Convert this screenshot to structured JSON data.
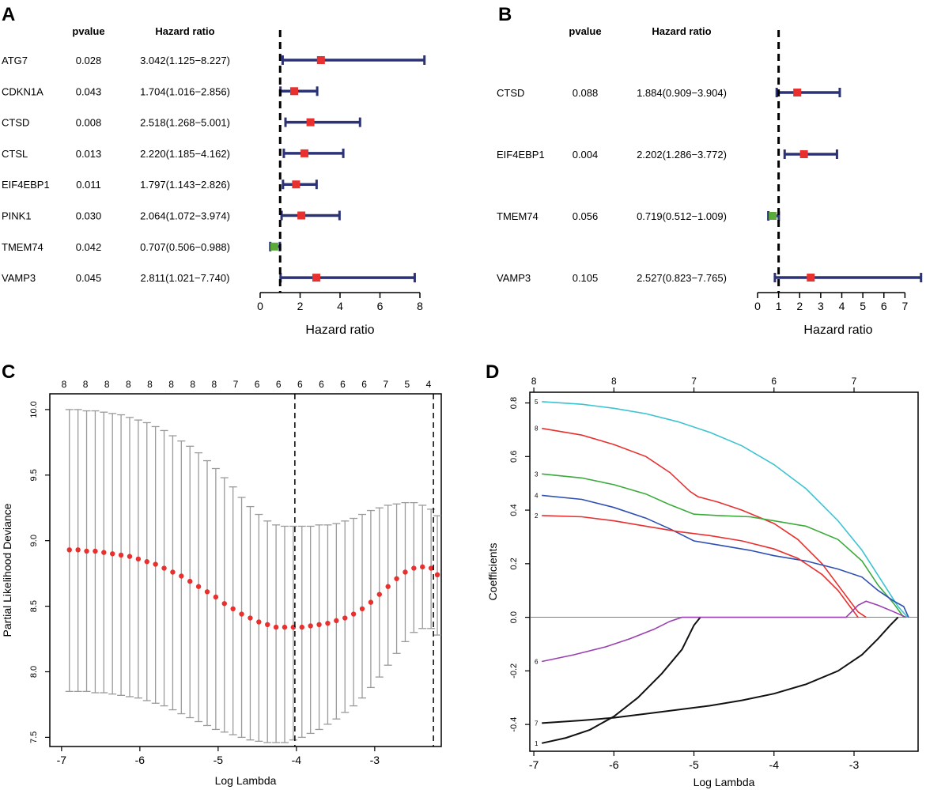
{
  "chart_data": [
    {
      "panel": "A",
      "type": "forest",
      "headers": {
        "pvalue": "pvalue",
        "hr": "Hazard ratio"
      },
      "rows": [
        {
          "gene": "ATG7",
          "pvalue": "0.028",
          "hr_text": "3.042(1.125−8.227)",
          "hr": 3.042,
          "lo": 1.125,
          "hi": 8.227,
          "color": "#e8302f"
        },
        {
          "gene": "CDKN1A",
          "pvalue": "0.043",
          "hr_text": "1.704(1.016−2.856)",
          "hr": 1.704,
          "lo": 1.016,
          "hi": 2.856,
          "color": "#e8302f"
        },
        {
          "gene": "CTSD",
          "pvalue": "0.008",
          "hr_text": "2.518(1.268−5.001)",
          "hr": 2.518,
          "lo": 1.268,
          "hi": 5.001,
          "color": "#e8302f"
        },
        {
          "gene": "CTSL",
          "pvalue": "0.013",
          "hr_text": "2.220(1.185−4.162)",
          "hr": 2.22,
          "lo": 1.185,
          "hi": 4.162,
          "color": "#e8302f"
        },
        {
          "gene": "EIF4EBP1",
          "pvalue": "0.011",
          "hr_text": "1.797(1.143−2.826)",
          "hr": 1.797,
          "lo": 1.143,
          "hi": 2.826,
          "color": "#e8302f"
        },
        {
          "gene": "PINK1",
          "pvalue": "0.030",
          "hr_text": "2.064(1.072−3.974)",
          "hr": 2.064,
          "lo": 1.072,
          "hi": 3.974,
          "color": "#e8302f"
        },
        {
          "gene": "TMEM74",
          "pvalue": "0.042",
          "hr_text": "0.707(0.506−0.988)",
          "hr": 0.707,
          "lo": 0.506,
          "hi": 0.988,
          "color": "#5aaa3a"
        },
        {
          "gene": "VAMP3",
          "pvalue": "0.045",
          "hr_text": "2.811(1.021−7.740)",
          "hr": 2.811,
          "lo": 1.021,
          "hi": 7.74,
          "color": "#e8302f"
        }
      ],
      "xlim": [
        0,
        8
      ],
      "xticks": [
        "0",
        "2",
        "4",
        "6",
        "8"
      ],
      "xlabel": "Hazard ratio",
      "reference_line": 1
    },
    {
      "panel": "B",
      "type": "forest",
      "headers": {
        "pvalue": "pvalue",
        "hr": "Hazard ratio"
      },
      "rows": [
        {
          "gene": "CTSD",
          "pvalue": "0.088",
          "hr_text": "1.884(0.909−3.904)",
          "hr": 1.884,
          "lo": 0.909,
          "hi": 3.904,
          "color": "#e8302f"
        },
        {
          "gene": "EIF4EBP1",
          "pvalue": "0.004",
          "hr_text": "2.202(1.286−3.772)",
          "hr": 2.202,
          "lo": 1.286,
          "hi": 3.772,
          "color": "#e8302f"
        },
        {
          "gene": "TMEM74",
          "pvalue": "0.056",
          "hr_text": "0.719(0.512−1.009)",
          "hr": 0.719,
          "lo": 0.512,
          "hi": 1.009,
          "color": "#5aaa3a"
        },
        {
          "gene": "VAMP3",
          "pvalue": "0.105",
          "hr_text": "2.527(0.823−7.765)",
          "hr": 2.527,
          "lo": 0.823,
          "hi": 7.765,
          "color": "#e8302f"
        }
      ],
      "xlim": [
        0,
        7.7
      ],
      "xticks": [
        "0",
        "1",
        "2",
        "3",
        "4",
        "5",
        "6",
        "7"
      ],
      "xlabel": "Hazard ratio",
      "reference_line": 1
    },
    {
      "panel": "C",
      "type": "scatter",
      "xlabel": "Log Lambda",
      "ylabel": "Partial Likelihood Deviance",
      "xlim": [
        -7.15,
        -2.15
      ],
      "ylim": [
        7.43,
        10.12
      ],
      "xticks": [
        "-7",
        "-6",
        "-5",
        "-4",
        "-3"
      ],
      "yticks": [
        "7.5",
        "8.0",
        "8.5",
        "9.0",
        "9.5",
        "10.0"
      ],
      "top_ticks": [
        "8",
        "8",
        "8",
        "8",
        "8",
        "8",
        "8",
        "8",
        "7",
        "6",
        "6",
        "6",
        "6",
        "6",
        "6",
        "7",
        "5",
        "4"
      ],
      "lambda_min": -4.02,
      "lambda_1se": -2.25,
      "points": [
        {
          "x": -6.9,
          "y": 8.93,
          "lo": 7.85,
          "hi": 10.0
        },
        {
          "x": -6.79,
          "y": 8.93,
          "lo": 7.85,
          "hi": 10.0
        },
        {
          "x": -6.68,
          "y": 8.92,
          "lo": 7.85,
          "hi": 9.99
        },
        {
          "x": -6.57,
          "y": 8.92,
          "lo": 7.84,
          "hi": 9.99
        },
        {
          "x": -6.46,
          "y": 8.91,
          "lo": 7.84,
          "hi": 9.98
        },
        {
          "x": -6.35,
          "y": 8.9,
          "lo": 7.83,
          "hi": 9.97
        },
        {
          "x": -6.24,
          "y": 8.89,
          "lo": 7.82,
          "hi": 9.96
        },
        {
          "x": -6.13,
          "y": 8.88,
          "lo": 7.81,
          "hi": 9.94
        },
        {
          "x": -6.02,
          "y": 8.86,
          "lo": 7.8,
          "hi": 9.92
        },
        {
          "x": -5.91,
          "y": 8.84,
          "lo": 7.78,
          "hi": 9.9
        },
        {
          "x": -5.8,
          "y": 8.82,
          "lo": 7.76,
          "hi": 9.87
        },
        {
          "x": -5.69,
          "y": 8.79,
          "lo": 7.74,
          "hi": 9.84
        },
        {
          "x": -5.58,
          "y": 8.76,
          "lo": 7.71,
          "hi": 9.8
        },
        {
          "x": -5.47,
          "y": 8.73,
          "lo": 7.68,
          "hi": 9.76
        },
        {
          "x": -5.36,
          "y": 8.69,
          "lo": 7.65,
          "hi": 9.72
        },
        {
          "x": -5.25,
          "y": 8.65,
          "lo": 7.62,
          "hi": 9.67
        },
        {
          "x": -5.14,
          "y": 8.61,
          "lo": 7.59,
          "hi": 9.61
        },
        {
          "x": -5.03,
          "y": 8.57,
          "lo": 7.56,
          "hi": 9.55
        },
        {
          "x": -4.92,
          "y": 8.52,
          "lo": 7.54,
          "hi": 9.48
        },
        {
          "x": -4.81,
          "y": 8.48,
          "lo": 7.52,
          "hi": 9.41
        },
        {
          "x": -4.7,
          "y": 8.44,
          "lo": 7.5,
          "hi": 9.33
        },
        {
          "x": -4.59,
          "y": 8.41,
          "lo": 7.48,
          "hi": 9.26
        },
        {
          "x": -4.48,
          "y": 8.38,
          "lo": 7.47,
          "hi": 9.2
        },
        {
          "x": -4.37,
          "y": 8.36,
          "lo": 7.46,
          "hi": 9.15
        },
        {
          "x": -4.26,
          "y": 8.34,
          "lo": 7.46,
          "hi": 9.12
        },
        {
          "x": -4.15,
          "y": 8.34,
          "lo": 7.46,
          "hi": 9.11
        },
        {
          "x": -4.04,
          "y": 8.34,
          "lo": 7.48,
          "hi": 9.11
        },
        {
          "x": -3.93,
          "y": 8.34,
          "lo": 7.5,
          "hi": 9.11
        },
        {
          "x": -3.82,
          "y": 8.35,
          "lo": 7.53,
          "hi": 9.11
        },
        {
          "x": -3.71,
          "y": 8.36,
          "lo": 7.56,
          "hi": 9.12
        },
        {
          "x": -3.6,
          "y": 8.37,
          "lo": 7.6,
          "hi": 9.12
        },
        {
          "x": -3.49,
          "y": 8.39,
          "lo": 7.64,
          "hi": 9.13
        },
        {
          "x": -3.38,
          "y": 8.41,
          "lo": 7.69,
          "hi": 9.15
        },
        {
          "x": -3.27,
          "y": 8.44,
          "lo": 7.74,
          "hi": 9.17
        },
        {
          "x": -3.16,
          "y": 8.48,
          "lo": 7.8,
          "hi": 9.2
        },
        {
          "x": -3.05,
          "y": 8.53,
          "lo": 7.88,
          "hi": 9.23
        },
        {
          "x": -2.94,
          "y": 8.59,
          "lo": 7.96,
          "hi": 9.25
        },
        {
          "x": -2.83,
          "y": 8.65,
          "lo": 8.05,
          "hi": 9.27
        },
        {
          "x": -2.72,
          "y": 8.71,
          "lo": 8.14,
          "hi": 9.28
        },
        {
          "x": -2.61,
          "y": 8.76,
          "lo": 8.23,
          "hi": 9.29
        },
        {
          "x": -2.5,
          "y": 8.79,
          "lo": 8.3,
          "hi": 9.29
        },
        {
          "x": -2.39,
          "y": 8.8,
          "lo": 8.33,
          "hi": 9.27
        },
        {
          "x": -2.28,
          "y": 8.79,
          "lo": 8.33,
          "hi": 9.24
        },
        {
          "x": -2.2,
          "y": 8.74,
          "lo": 8.28,
          "hi": 9.19
        }
      ]
    },
    {
      "panel": "D",
      "type": "line",
      "xlabel": "Log Lambda",
      "ylabel": "Coefficients",
      "xlim": [
        -7.05,
        -2.2
      ],
      "ylim": [
        -0.5,
        0.84
      ],
      "xticks": [
        "-7",
        "-6",
        "-5",
        "-4",
        "-3"
      ],
      "yticks": [
        "-0.4",
        "-0.2",
        "0.0",
        "0.2",
        "0.4",
        "0.6",
        "0.8"
      ],
      "top_ticks": [
        "8",
        "8",
        "7",
        "6",
        "7"
      ],
      "series": [
        {
          "name": "5",
          "color": "#3cc3d0",
          "points": [
            [
              -6.9,
              0.805
            ],
            [
              -6.4,
              0.795
            ],
            [
              -6.0,
              0.78
            ],
            [
              -5.6,
              0.76
            ],
            [
              -5.2,
              0.73
            ],
            [
              -4.8,
              0.69
            ],
            [
              -4.4,
              0.64
            ],
            [
              -4.0,
              0.57
            ],
            [
              -3.6,
              0.48
            ],
            [
              -3.2,
              0.36
            ],
            [
              -2.9,
              0.25
            ],
            [
              -2.6,
              0.11
            ],
            [
              -2.45,
              0.04
            ],
            [
              -2.33,
              0.0
            ]
          ]
        },
        {
          "name": "8",
          "color": "#e8302f",
          "points": [
            [
              -6.9,
              0.705
            ],
            [
              -6.4,
              0.68
            ],
            [
              -6.0,
              0.645
            ],
            [
              -5.6,
              0.6
            ],
            [
              -5.3,
              0.54
            ],
            [
              -5.05,
              0.47
            ],
            [
              -4.95,
              0.45
            ],
            [
              -4.7,
              0.43
            ],
            [
              -4.4,
              0.4
            ],
            [
              -4.0,
              0.35
            ],
            [
              -3.7,
              0.29
            ],
            [
              -3.4,
              0.2
            ],
            [
              -3.15,
              0.1
            ],
            [
              -2.95,
              0.02
            ],
            [
              -2.85,
              0.0
            ]
          ]
        },
        {
          "name": "3",
          "color": "#3aaa3a",
          "points": [
            [
              -6.9,
              0.535
            ],
            [
              -6.4,
              0.52
            ],
            [
              -6.0,
              0.495
            ],
            [
              -5.6,
              0.46
            ],
            [
              -5.3,
              0.42
            ],
            [
              -5.0,
              0.385
            ],
            [
              -4.7,
              0.38
            ],
            [
              -4.3,
              0.375
            ],
            [
              -4.0,
              0.36
            ],
            [
              -3.6,
              0.34
            ],
            [
              -3.2,
              0.29
            ],
            [
              -2.9,
              0.21
            ],
            [
              -2.7,
              0.12
            ],
            [
              -2.5,
              0.05
            ],
            [
              -2.38,
              0.0
            ]
          ]
        },
        {
          "name": "4",
          "color": "#2e4fb3",
          "points": [
            [
              -6.9,
              0.455
            ],
            [
              -6.4,
              0.44
            ],
            [
              -6.0,
              0.41
            ],
            [
              -5.6,
              0.37
            ],
            [
              -5.3,
              0.33
            ],
            [
              -5.0,
              0.285
            ],
            [
              -4.7,
              0.27
            ],
            [
              -4.3,
              0.25
            ],
            [
              -4.0,
              0.23
            ],
            [
              -3.6,
              0.21
            ],
            [
              -3.2,
              0.18
            ],
            [
              -2.9,
              0.15
            ],
            [
              -2.7,
              0.1
            ],
            [
              -2.5,
              0.06
            ],
            [
              -2.38,
              0.04
            ],
            [
              -2.32,
              0.0
            ]
          ]
        },
        {
          "name": "2",
          "color": "#e8302f",
          "points": [
            [
              -6.9,
              0.38
            ],
            [
              -6.4,
              0.375
            ],
            [
              -6.0,
              0.36
            ],
            [
              -5.6,
              0.34
            ],
            [
              -5.2,
              0.32
            ],
            [
              -4.8,
              0.305
            ],
            [
              -4.4,
              0.285
            ],
            [
              -4.0,
              0.255
            ],
            [
              -3.7,
              0.22
            ],
            [
              -3.4,
              0.16
            ],
            [
              -3.2,
              0.1
            ],
            [
              -3.05,
              0.04
            ],
            [
              -2.95,
              0.0
            ]
          ]
        },
        {
          "name": "1",
          "color": "#111111",
          "points": [
            [
              -6.9,
              -0.47
            ],
            [
              -6.6,
              -0.45
            ],
            [
              -6.3,
              -0.42
            ],
            [
              -6.0,
              -0.37
            ],
            [
              -5.7,
              -0.3
            ],
            [
              -5.4,
              -0.21
            ],
            [
              -5.15,
              -0.12
            ],
            [
              -5.0,
              -0.03
            ],
            [
              -4.92,
              0.0
            ]
          ]
        },
        {
          "name": "7",
          "color": "#111111",
          "points": [
            [
              -6.9,
              -0.395
            ],
            [
              -6.4,
              -0.385
            ],
            [
              -6.0,
              -0.375
            ],
            [
              -5.6,
              -0.36
            ],
            [
              -5.2,
              -0.345
            ],
            [
              -4.8,
              -0.33
            ],
            [
              -4.4,
              -0.31
            ],
            [
              -4.0,
              -0.285
            ],
            [
              -3.6,
              -0.25
            ],
            [
              -3.2,
              -0.2
            ],
            [
              -2.9,
              -0.14
            ],
            [
              -2.7,
              -0.08
            ],
            [
              -2.55,
              -0.03
            ],
            [
              -2.45,
              0.0
            ]
          ]
        },
        {
          "name": "6",
          "color": "#9b3fb0",
          "points": [
            [
              -6.9,
              -0.165
            ],
            [
              -6.5,
              -0.14
            ],
            [
              -6.1,
              -0.11
            ],
            [
              -5.8,
              -0.08
            ],
            [
              -5.5,
              -0.045
            ],
            [
              -5.3,
              -0.015
            ],
            [
              -5.15,
              0.0
            ],
            [
              -3.1,
              0.0
            ],
            [
              -2.95,
              0.045
            ],
            [
              -2.85,
              0.06
            ],
            [
              -2.7,
              0.045
            ],
            [
              -2.5,
              0.02
            ],
            [
              -2.35,
              0.0
            ]
          ]
        }
      ],
      "line_labels": [
        "5",
        "8",
        "3",
        "4",
        "2",
        "6",
        "7",
        "1"
      ]
    }
  ],
  "panels": {
    "a": {
      "letter": "A"
    },
    "b": {
      "letter": "B"
    },
    "c": {
      "letter": "C"
    },
    "d": {
      "letter": "D"
    }
  }
}
